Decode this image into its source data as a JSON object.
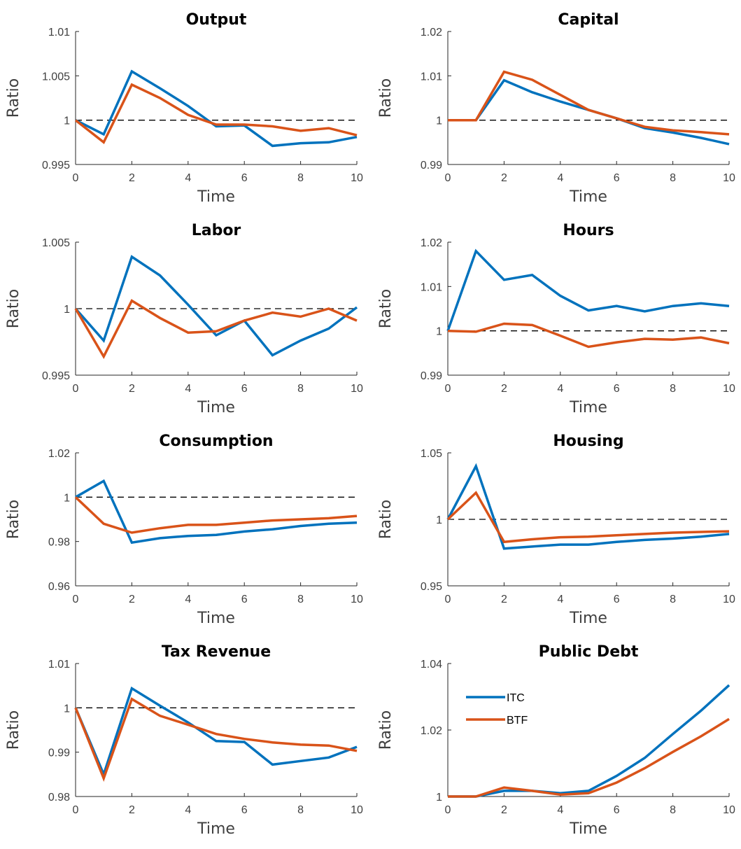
{
  "chart_data": [
    {
      "type": "line",
      "title": "Output",
      "xlabel": "Time",
      "ylabel": "Ratio",
      "xlim": [
        0,
        10
      ],
      "ylim": [
        0.995,
        1.01
      ],
      "xticks": [
        0,
        2,
        4,
        6,
        8,
        10
      ],
      "xtick_labels": [
        "0",
        "2",
        "4",
        "6",
        "8",
        "10"
      ],
      "yticks": [
        0.995,
        1,
        1.005,
        1.01
      ],
      "ytick_labels": [
        "0.995",
        "1",
        "1.005",
        "1.01"
      ],
      "reference_line": 1,
      "x": [
        0,
        1,
        2,
        3,
        4,
        5,
        6,
        7,
        8,
        9,
        10
      ],
      "series": [
        {
          "values": [
            1.0,
            0.9984,
            1.0055,
            1.0036,
            1.0016,
            0.9993,
            0.9994,
            0.9971,
            0.9974,
            0.9975,
            0.9981
          ]
        },
        {
          "values": [
            1.0,
            0.9975,
            1.004,
            1.0025,
            1.0006,
            0.9995,
            0.9995,
            0.9993,
            0.9988,
            0.9991,
            0.9983
          ]
        }
      ]
    },
    {
      "type": "line",
      "title": "Capital",
      "xlabel": "Time",
      "ylabel": "Ratio",
      "xlim": [
        0,
        10
      ],
      "ylim": [
        0.99,
        1.02
      ],
      "xticks": [
        0,
        2,
        4,
        6,
        8,
        10
      ],
      "xtick_labels": [
        "0",
        "2",
        "4",
        "6",
        "8",
        "10"
      ],
      "yticks": [
        0.99,
        1,
        1.01,
        1.02
      ],
      "ytick_labels": [
        "0.99",
        "1",
        "1.01",
        "1.02"
      ],
      "reference_line": 1,
      "x": [
        0,
        1,
        2,
        3,
        4,
        5,
        6,
        7,
        8,
        9,
        10
      ],
      "series": [
        {
          "values": [
            1.0,
            1.0,
            1.009,
            1.0063,
            1.0042,
            1.0023,
            1.0004,
            0.9982,
            0.9972,
            0.996,
            0.9946
          ]
        },
        {
          "values": [
            1.0,
            1.0,
            1.0109,
            1.0091,
            1.0057,
            1.0023,
            1.0004,
            0.9985,
            0.9977,
            0.9973,
            0.9968
          ]
        }
      ]
    },
    {
      "type": "line",
      "title": "Labor",
      "xlabel": "Time",
      "ylabel": "Ratio",
      "xlim": [
        0,
        10
      ],
      "ylim": [
        0.995,
        1.005
      ],
      "xticks": [
        0,
        2,
        4,
        6,
        8,
        10
      ],
      "xtick_labels": [
        "0",
        "2",
        "4",
        "6",
        "8",
        "10"
      ],
      "yticks": [
        0.995,
        1,
        1.005
      ],
      "ytick_labels": [
        "0.995",
        "1",
        "1.005"
      ],
      "reference_line": 1,
      "x": [
        0,
        1,
        2,
        3,
        4,
        5,
        6,
        7,
        8,
        9,
        10
      ],
      "series": [
        {
          "values": [
            1.0,
            0.9976,
            1.0039,
            1.0025,
            1.0003,
            0.998,
            0.9991,
            0.9965,
            0.9976,
            0.9985,
            1.0001
          ]
        },
        {
          "values": [
            1.0,
            0.9964,
            1.0006,
            0.9993,
            0.9982,
            0.9983,
            0.9991,
            0.9997,
            0.9994,
            1.0,
            0.9991
          ]
        }
      ]
    },
    {
      "type": "line",
      "title": "Hours",
      "xlabel": "Time",
      "ylabel": "Ratio",
      "xlim": [
        0,
        10
      ],
      "ylim": [
        0.99,
        1.02
      ],
      "xticks": [
        0,
        2,
        4,
        6,
        8,
        10
      ],
      "xtick_labels": [
        "0",
        "2",
        "4",
        "6",
        "8",
        "10"
      ],
      "yticks": [
        0.99,
        1,
        1.01,
        1.02
      ],
      "ytick_labels": [
        "0.99",
        "1",
        "1.01",
        "1.02"
      ],
      "reference_line": 1,
      "x": [
        0,
        1,
        2,
        3,
        4,
        5,
        6,
        7,
        8,
        9,
        10
      ],
      "series": [
        {
          "values": [
            1.0,
            1.018,
            1.0115,
            1.0126,
            1.0079,
            1.0046,
            1.0056,
            1.0044,
            1.0056,
            1.0062,
            1.0056
          ]
        },
        {
          "values": [
            1.0,
            0.9998,
            1.0016,
            1.0013,
            0.9989,
            0.9964,
            0.9974,
            0.9982,
            0.998,
            0.9985,
            0.9972
          ]
        }
      ]
    },
    {
      "type": "line",
      "title": "Consumption",
      "xlabel": "Time",
      "ylabel": "Ratio",
      "xlim": [
        0,
        10
      ],
      "ylim": [
        0.96,
        1.02
      ],
      "xticks": [
        0,
        2,
        4,
        6,
        8,
        10
      ],
      "xtick_labels": [
        "0",
        "2",
        "4",
        "6",
        "8",
        "10"
      ],
      "yticks": [
        0.96,
        0.98,
        1,
        1.02
      ],
      "ytick_labels": [
        "0.96",
        "0.98",
        "1",
        "1.02"
      ],
      "reference_line": 1,
      "x": [
        0,
        1,
        2,
        3,
        4,
        5,
        6,
        7,
        8,
        9,
        10
      ],
      "series": [
        {
          "values": [
            1.0,
            1.0073,
            0.9795,
            0.9815,
            0.9825,
            0.983,
            0.9845,
            0.9855,
            0.987,
            0.988,
            0.9885
          ]
        },
        {
          "values": [
            1.0,
            0.988,
            0.984,
            0.986,
            0.9875,
            0.9875,
            0.9885,
            0.9895,
            0.99,
            0.9905,
            0.9915
          ]
        }
      ]
    },
    {
      "type": "line",
      "title": "Housing",
      "xlabel": "Time",
      "ylabel": "Ratio",
      "xlim": [
        0,
        10
      ],
      "ylim": [
        0.95,
        1.05
      ],
      "xticks": [
        0,
        2,
        4,
        6,
        8,
        10
      ],
      "xtick_labels": [
        "0",
        "2",
        "4",
        "6",
        "8",
        "10"
      ],
      "yticks": [
        0.95,
        1,
        1.05
      ],
      "ytick_labels": [
        "0.95",
        "1",
        "1.05"
      ],
      "reference_line": 1,
      "x": [
        0,
        1,
        2,
        3,
        4,
        5,
        6,
        7,
        8,
        9,
        10
      ],
      "series": [
        {
          "values": [
            1.0,
            1.04,
            0.978,
            0.9795,
            0.981,
            0.981,
            0.983,
            0.9845,
            0.9855,
            0.987,
            0.989
          ]
        },
        {
          "values": [
            1.0,
            1.02,
            0.983,
            0.985,
            0.9865,
            0.987,
            0.988,
            0.989,
            0.99,
            0.9905,
            0.991
          ]
        }
      ]
    },
    {
      "type": "line",
      "title": "Tax Revenue",
      "xlabel": "Time",
      "ylabel": "Ratio",
      "xlim": [
        0,
        10
      ],
      "ylim": [
        0.98,
        1.01
      ],
      "xticks": [
        0,
        2,
        4,
        6,
        8,
        10
      ],
      "xtick_labels": [
        "0",
        "2",
        "4",
        "6",
        "8",
        "10"
      ],
      "yticks": [
        0.98,
        0.99,
        1,
        1.01
      ],
      "ytick_labels": [
        "0.98",
        "0.99",
        "1",
        "1.01"
      ],
      "reference_line": 1,
      "x": [
        0,
        1,
        2,
        3,
        4,
        5,
        6,
        7,
        8,
        9,
        10
      ],
      "series": [
        {
          "values": [
            1.0,
            0.985,
            1.0044,
            1.0005,
            0.9967,
            0.9925,
            0.9923,
            0.9872,
            0.988,
            0.9888,
            0.9912
          ]
        },
        {
          "values": [
            1.0,
            0.9841,
            1.002,
            0.9982,
            0.9962,
            0.9941,
            0.993,
            0.9922,
            0.9917,
            0.9915,
            0.9903
          ]
        }
      ]
    },
    {
      "type": "line",
      "title": "Public Debt",
      "xlabel": "Time",
      "ylabel": "Ratio",
      "xlim": [
        0,
        10
      ],
      "ylim": [
        1,
        1.04
      ],
      "xticks": [
        0,
        2,
        4,
        6,
        8,
        10
      ],
      "xtick_labels": [
        "0",
        "2",
        "4",
        "6",
        "8",
        "10"
      ],
      "yticks": [
        1,
        1.02,
        1.04
      ],
      "ytick_labels": [
        "1",
        "1.02",
        "1.04"
      ],
      "legend": {
        "position": "top-left",
        "entries": [
          "ITC",
          "BTF"
        ]
      },
      "x": [
        0,
        1,
        2,
        3,
        4,
        5,
        6,
        7,
        8,
        9,
        10
      ],
      "series": [
        {
          "name": "ITC",
          "values": [
            1.0,
            1.0,
            1.0017,
            1.0017,
            1.001,
            1.0017,
            1.0062,
            1.0116,
            1.0188,
            1.0258,
            1.0335
          ]
        },
        {
          "name": "BTF",
          "values": [
            1.0,
            1.0,
            1.0027,
            1.0017,
            1.0006,
            1.001,
            1.0042,
            1.0085,
            1.0134,
            1.0181,
            1.0233
          ]
        }
      ]
    }
  ],
  "colors": {
    "series": [
      "#0072BD",
      "#D95319"
    ],
    "reference": "#000000",
    "axis": "#262626"
  }
}
